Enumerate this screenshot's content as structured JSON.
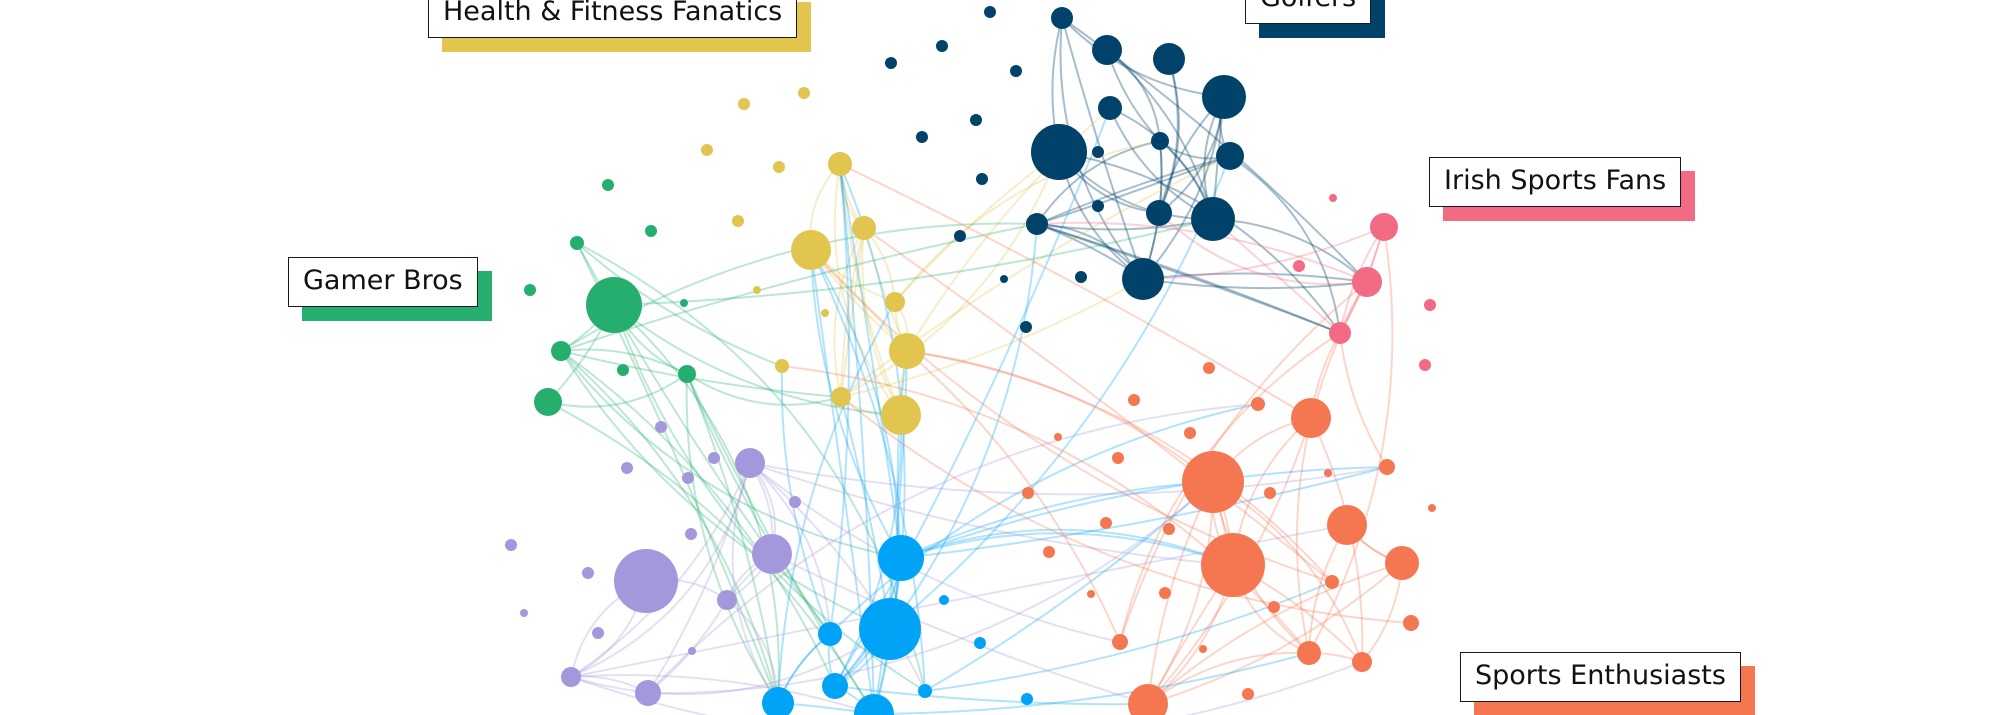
{
  "groups": [
    {
      "id": "fitness",
      "label": "Health & Fitness Fanatics",
      "color": "#E2C54F"
    },
    {
      "id": "golfers",
      "label": "Golfers",
      "color": "#00426A"
    },
    {
      "id": "irish",
      "label": "Irish Sports Fans",
      "color": "#F26A84"
    },
    {
      "id": "gamer",
      "label": "Gamer Bros",
      "color": "#26AE6F"
    },
    {
      "id": "sports",
      "label": "Sports Enthusiasts",
      "color": "#F47751"
    },
    {
      "id": "purple",
      "label": "",
      "color": "#A597DB"
    },
    {
      "id": "blue",
      "label": "",
      "color": "#00A3F5"
    }
  ]
}
